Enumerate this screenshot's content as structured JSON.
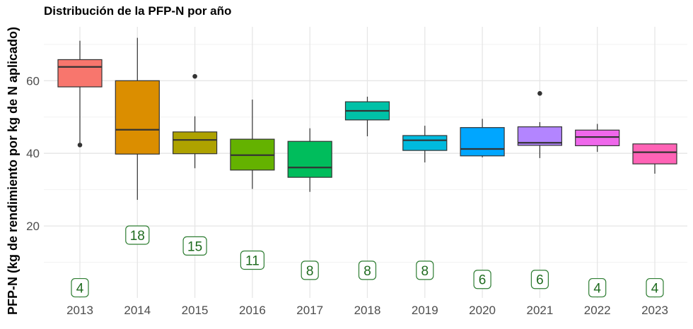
{
  "chart_data": {
    "type": "boxplot",
    "title": "Distribución de la PFP-N por año",
    "xlabel": "",
    "ylabel": "PFP-N (kg de rendimiento por kg de N aplicado)",
    "ylim": [
      0,
      73.5
    ],
    "yticks": [
      20,
      40,
      60
    ],
    "grid": true,
    "boxes": [
      {
        "category": "2013",
        "min": 42.3,
        "q1": 58.3,
        "median": 63.8,
        "q3": 65.8,
        "max": 71.0,
        "outliers": [
          42.3
        ],
        "count": "4",
        "color": "#F8766D"
      },
      {
        "category": "2014",
        "min": 27.2,
        "q1": 39.8,
        "median": 46.5,
        "q3": 60.0,
        "max": 71.8,
        "outliers": [],
        "count": "18",
        "color": "#DB8E00"
      },
      {
        "category": "2015",
        "min": 35.9,
        "q1": 39.9,
        "median": 43.7,
        "q3": 45.9,
        "max": 50.2,
        "outliers": [
          61.2
        ],
        "count": "15",
        "color": "#AEA200"
      },
      {
        "category": "2016",
        "min": 30.2,
        "q1": 35.4,
        "median": 39.5,
        "q3": 43.9,
        "max": 54.8,
        "outliers": [],
        "count": "11",
        "color": "#64B200"
      },
      {
        "category": "2017",
        "min": 29.4,
        "q1": 33.4,
        "median": 36.1,
        "q3": 43.3,
        "max": 46.9,
        "outliers": [],
        "count": "8",
        "color": "#00BD5C"
      },
      {
        "category": "2018",
        "min": 44.7,
        "q1": 49.2,
        "median": 51.7,
        "q3": 54.2,
        "max": 55.6,
        "outliers": [],
        "count": "8",
        "color": "#00C1A7"
      },
      {
        "category": "2019",
        "min": 37.5,
        "q1": 40.8,
        "median": 43.6,
        "q3": 44.9,
        "max": 47.6,
        "outliers": [],
        "count": "8",
        "color": "#00BADE"
      },
      {
        "category": "2020",
        "min": 38.9,
        "q1": 39.3,
        "median": 41.2,
        "q3": 47.1,
        "max": 49.5,
        "outliers": [],
        "count": "6",
        "color": "#00A6FF"
      },
      {
        "category": "2021",
        "min": 38.7,
        "q1": 42.2,
        "median": 42.9,
        "q3": 47.3,
        "max": 48.6,
        "outliers": [
          56.5
        ],
        "count": "6",
        "color": "#B385FF"
      },
      {
        "category": "2022",
        "min": 40.4,
        "q1": 42.1,
        "median": 44.5,
        "q3": 46.4,
        "max": 48.1,
        "outliers": [],
        "count": "4",
        "color": "#EF67EB"
      },
      {
        "category": "2023",
        "min": 34.4,
        "q1": 37.1,
        "median": 40.3,
        "q3": 42.6,
        "max": 42.6,
        "outliers": [],
        "count": "4",
        "color": "#FF63B6"
      }
    ],
    "count_positions": [
      3.0,
      17.5,
      14.5,
      10.6,
      7.8,
      7.8,
      7.8,
      5.3,
      5.3,
      3.0,
      3.0
    ]
  }
}
